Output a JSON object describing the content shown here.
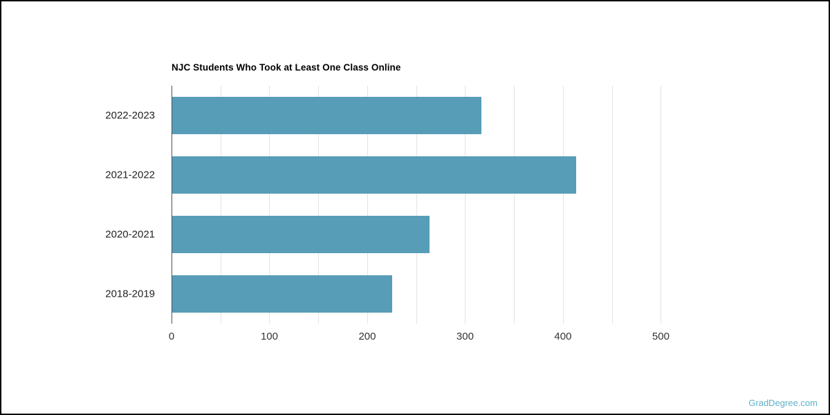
{
  "page": {
    "background": "#ffffff",
    "frame_border_color": "#000000"
  },
  "watermark": {
    "text": "GradDegree.com",
    "color": "#5fb0cb"
  },
  "chart_data": {
    "type": "bar",
    "orientation": "horizontal",
    "title": "NJC Students Who Took at Least One Class Online",
    "categories": [
      "2022-2023",
      "2021-2022",
      "2020-2021",
      "2018-2019"
    ],
    "values": [
      316,
      413,
      263,
      225
    ],
    "xlabel": "",
    "ylabel": "",
    "xlim": [
      0,
      540
    ],
    "x_ticks": [
      0,
      100,
      200,
      300,
      400,
      500
    ],
    "gridline_interval": 50,
    "grid": true,
    "legend": false,
    "bar_color": "#579db8",
    "gridline_color": "#e3e3e3",
    "axis_line_color": "#4d4d4d",
    "tick_text_color": "#333333",
    "category_text_color": "#222222"
  }
}
